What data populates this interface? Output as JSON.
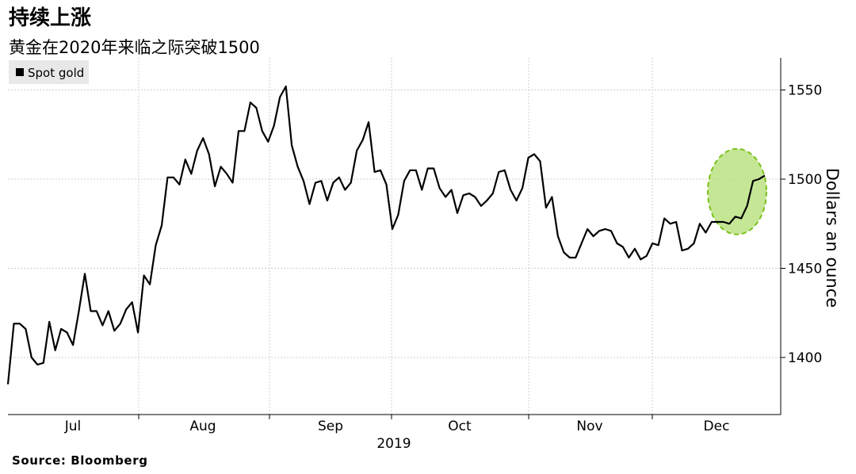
{
  "title": "持续上涨",
  "subtitle": "黄金在2020年来临之际突破1500",
  "source": "Source:  Bloomberg",
  "chart_data": {
    "type": "line",
    "series": [
      {
        "name": "Spot gold",
        "color": "#000000",
        "values": [
          1385,
          1419,
          1419,
          1416,
          1400,
          1396,
          1397,
          1420,
          1404,
          1416,
          1414,
          1407,
          1426,
          1447,
          1426,
          1426,
          1418,
          1426,
          1415,
          1419,
          1427,
          1431,
          1414,
          1446,
          1441,
          1463,
          1474,
          1501,
          1501,
          1497,
          1511,
          1503,
          1516,
          1523,
          1514,
          1496,
          1507,
          1503,
          1498,
          1527,
          1527,
          1543,
          1540,
          1527,
          1521,
          1530,
          1546,
          1552,
          1519,
          1507,
          1499,
          1486,
          1498,
          1499,
          1488,
          1498,
          1501,
          1494,
          1498,
          1516,
          1522,
          1532,
          1504,
          1505,
          1497,
          1472,
          1480,
          1499,
          1505,
          1505,
          1494,
          1506,
          1506,
          1495,
          1490,
          1494,
          1481,
          1491,
          1492,
          1490,
          1485,
          1488,
          1492,
          1504,
          1505,
          1494,
          1488,
          1495,
          1512,
          1514,
          1510,
          1484,
          1490,
          1468,
          1459,
          1456,
          1456,
          1464,
          1472,
          1468,
          1471,
          1472,
          1471,
          1464,
          1462,
          1456,
          1461,
          1455,
          1457,
          1464,
          1463,
          1478,
          1475,
          1476,
          1460,
          1461,
          1464,
          1475,
          1470,
          1476,
          1476,
          1476,
          1475,
          1479,
          1478,
          1485,
          1499,
          1500,
          1502
        ]
      }
    ],
    "x_labels": [
      "Jul",
      "Aug",
      "Sep",
      "Oct",
      "Nov",
      "Dec"
    ],
    "x_year_label": "2019",
    "ylabel": "Dollars an ounce",
    "yticks": [
      1400,
      1450,
      1500,
      1550
    ],
    "ylim": [
      1368,
      1568
    ],
    "legend": "top-left",
    "grid": true,
    "highlight": {
      "center_y": 1493,
      "fill": "#b7e07a",
      "stroke": "#7ac21e"
    }
  }
}
